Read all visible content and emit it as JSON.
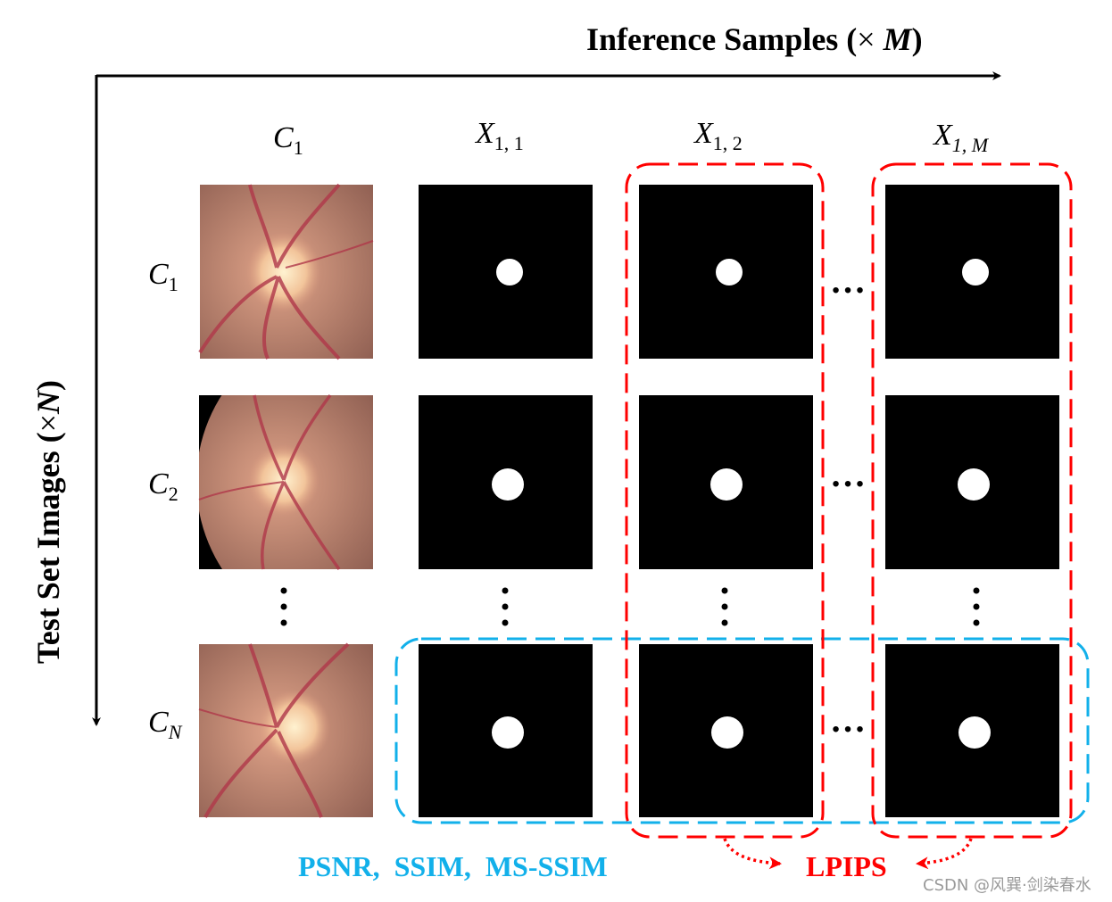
{
  "axes": {
    "horizontal_label": "Inference  Samples (",
    "horizontal_symbol": "× ",
    "horizontal_var": "M",
    "horizontal_close": ")",
    "vertical_label": "Test Set Images (",
    "vertical_symbol": "×",
    "vertical_var": "N",
    "vertical_close": ")"
  },
  "columns": [
    {
      "base": "C",
      "sub": "1"
    },
    {
      "base": "X",
      "sub": "1, 1"
    },
    {
      "base": "X",
      "sub": "1, 2"
    },
    {
      "base": "X",
      "sub": "1, M"
    }
  ],
  "rows": [
    {
      "base": "C",
      "sub": "1"
    },
    {
      "base": "C",
      "sub": "2"
    },
    {
      "base": "C",
      "sub": "N"
    }
  ],
  "ellipsis": "…",
  "metrics": {
    "group_blue": "PSNR,  SSIM,  MS-SSIM",
    "group_red": "LPIPS"
  },
  "colors": {
    "blue": "#12b0ea",
    "red": "#ff0000",
    "mask_bg": "#000000",
    "mask_fg": "#ffffff"
  },
  "watermark": "CSDN @风巽·剑染春水"
}
